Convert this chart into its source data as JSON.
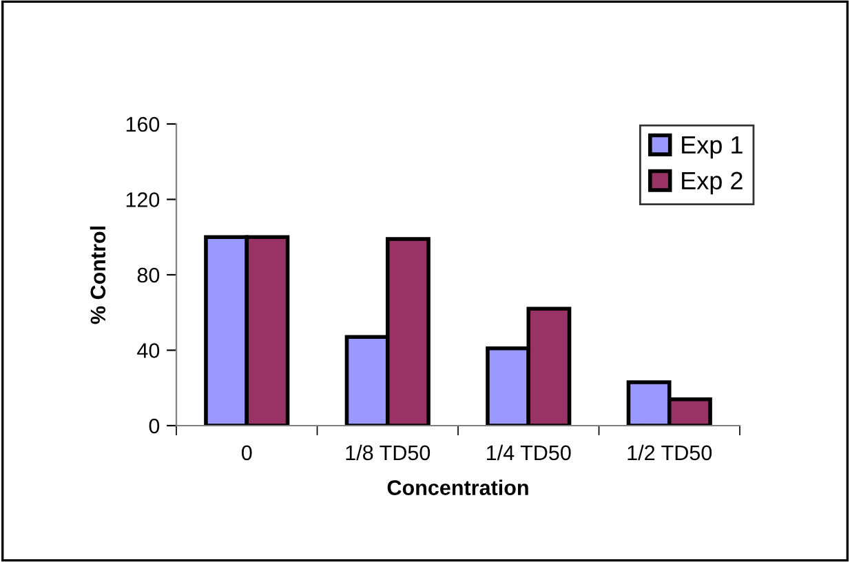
{
  "chart_data": {
    "type": "bar",
    "xlabel": "Concentration",
    "ylabel": "% Control",
    "categories": [
      "0",
      "1/8 TD50",
      "1/4 TD50",
      "1/2 TD50"
    ],
    "series": [
      {
        "name": "Exp 1",
        "color": "#9999ff",
        "values": [
          100,
          47,
          41,
          23
        ]
      },
      {
        "name": "Exp 2",
        "color": "#993366",
        "values": [
          100,
          99,
          62,
          14
        ]
      }
    ],
    "ylim": [
      0,
      160
    ],
    "yticks": [
      0,
      40,
      80,
      120,
      160
    ],
    "grid": false,
    "legend": "top right"
  }
}
